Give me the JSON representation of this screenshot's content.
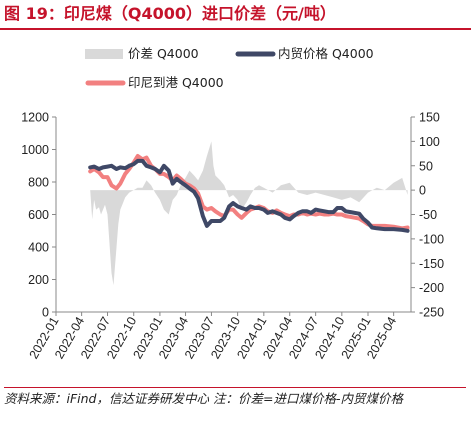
{
  "header": {
    "title": "图 19：印尼煤（Q4000）进口价差（元/吨）"
  },
  "footer": {
    "source": "资料来源：iFind，信达证券研发中心 注：价差=进口煤价格-内贸煤价格"
  },
  "colors": {
    "spread": "#d9d9d9",
    "domestic": "#3f4866",
    "import": "#f28080",
    "title": "#c5132b"
  },
  "chart_data": {
    "type": "line",
    "title": "",
    "legend": [
      "价差 Q4000",
      "内贸价格 Q4000",
      "印尼到港 Q4000"
    ],
    "legend_position": "top",
    "x_ticks": [
      "2022-01",
      "2022-04",
      "2022-07",
      "2022-10",
      "2023-01",
      "2023-04",
      "2023-07",
      "2023-10",
      "2024-01",
      "2024-04",
      "2024-07",
      "2024-10",
      "2025-01",
      "2025-04"
    ],
    "y_left": {
      "min": 0,
      "max": 1200,
      "ticks": [
        0,
        200,
        400,
        600,
        800,
        1000,
        1200
      ]
    },
    "y_right": {
      "min": -250,
      "max": 150,
      "ticks": [
        150,
        100,
        50,
        0,
        -50,
        -100,
        -150,
        -200,
        -250
      ]
    },
    "x_range": [
      "2022-01-01",
      "2025-06-01"
    ],
    "series": [
      {
        "name": "价差 Q4000",
        "type": "area",
        "axis": "right",
        "points": [
          [
            "2022-05-01",
            0
          ],
          [
            "2022-05-08",
            -60
          ],
          [
            "2022-05-15",
            -20
          ],
          [
            "2022-05-22",
            -40
          ],
          [
            "2022-06-01",
            -35
          ],
          [
            "2022-06-08",
            -50
          ],
          [
            "2022-06-15",
            -40
          ],
          [
            "2022-06-22",
            -30
          ],
          [
            "2022-07-01",
            -50
          ],
          [
            "2022-07-08",
            -110
          ],
          [
            "2022-07-15",
            -170
          ],
          [
            "2022-07-22",
            -195
          ],
          [
            "2022-08-01",
            -120
          ],
          [
            "2022-08-08",
            -70
          ],
          [
            "2022-08-15",
            -40
          ],
          [
            "2022-08-22",
            -30
          ],
          [
            "2022-09-01",
            -15
          ],
          [
            "2022-09-15",
            -5
          ],
          [
            "2022-10-01",
            0
          ],
          [
            "2022-10-15",
            5
          ],
          [
            "2022-11-01",
            5
          ],
          [
            "2022-11-15",
            20
          ],
          [
            "2022-12-01",
            10
          ],
          [
            "2022-12-15",
            -5
          ],
          [
            "2023-01-01",
            -20
          ],
          [
            "2023-01-15",
            -40
          ],
          [
            "2023-02-01",
            -50
          ],
          [
            "2023-02-15",
            -20
          ],
          [
            "2023-03-01",
            -10
          ],
          [
            "2023-03-15",
            10
          ],
          [
            "2023-04-01",
            25
          ],
          [
            "2023-04-15",
            40
          ],
          [
            "2023-05-01",
            30
          ],
          [
            "2023-05-15",
            20
          ],
          [
            "2023-06-01",
            40
          ],
          [
            "2023-06-15",
            70
          ],
          [
            "2023-07-01",
            100
          ],
          [
            "2023-07-08",
            50
          ],
          [
            "2023-07-15",
            30
          ],
          [
            "2023-08-01",
            20
          ],
          [
            "2023-08-15",
            10
          ],
          [
            "2023-09-01",
            -15
          ],
          [
            "2023-09-15",
            -10
          ],
          [
            "2023-10-01",
            -20
          ],
          [
            "2023-10-15",
            -40
          ],
          [
            "2023-11-01",
            -25
          ],
          [
            "2023-11-15",
            -10
          ],
          [
            "2023-12-01",
            5
          ],
          [
            "2023-12-15",
            10
          ],
          [
            "2024-01-01",
            5
          ],
          [
            "2024-02-01",
            -5
          ],
          [
            "2024-03-01",
            10
          ],
          [
            "2024-04-01",
            15
          ],
          [
            "2024-05-01",
            -5
          ],
          [
            "2024-06-01",
            -10
          ],
          [
            "2024-07-01",
            -5
          ],
          [
            "2024-08-01",
            -10
          ],
          [
            "2024-09-01",
            -15
          ],
          [
            "2024-10-01",
            -20
          ],
          [
            "2024-11-01",
            -15
          ],
          [
            "2024-12-01",
            -25
          ],
          [
            "2025-01-01",
            -5
          ],
          [
            "2025-02-01",
            5
          ],
          [
            "2025-03-01",
            0
          ],
          [
            "2025-04-01",
            15
          ],
          [
            "2025-05-01",
            25
          ],
          [
            "2025-05-20",
            -10
          ]
        ]
      },
      {
        "name": "内贸价格 Q4000",
        "type": "line",
        "axis": "left",
        "points": [
          [
            "2022-05-01",
            890
          ],
          [
            "2022-05-15",
            895
          ],
          [
            "2022-06-01",
            880
          ],
          [
            "2022-06-15",
            890
          ],
          [
            "2022-07-01",
            895
          ],
          [
            "2022-07-15",
            900
          ],
          [
            "2022-08-01",
            880
          ],
          [
            "2022-08-15",
            890
          ],
          [
            "2022-09-01",
            885
          ],
          [
            "2022-09-15",
            900
          ],
          [
            "2022-10-01",
            910
          ],
          [
            "2022-10-15",
            930
          ],
          [
            "2022-11-01",
            930
          ],
          [
            "2022-11-15",
            900
          ],
          [
            "2022-12-01",
            890
          ],
          [
            "2022-12-15",
            880
          ],
          [
            "2023-01-01",
            860
          ],
          [
            "2023-01-15",
            900
          ],
          [
            "2023-02-01",
            870
          ],
          [
            "2023-02-15",
            790
          ],
          [
            "2023-03-01",
            820
          ],
          [
            "2023-03-15",
            800
          ],
          [
            "2023-04-01",
            780
          ],
          [
            "2023-04-15",
            760
          ],
          [
            "2023-05-01",
            740
          ],
          [
            "2023-05-15",
            700
          ],
          [
            "2023-06-01",
            590
          ],
          [
            "2023-06-15",
            530
          ],
          [
            "2023-07-01",
            560
          ],
          [
            "2023-07-15",
            560
          ],
          [
            "2023-08-01",
            560
          ],
          [
            "2023-08-15",
            580
          ],
          [
            "2023-09-01",
            650
          ],
          [
            "2023-09-15",
            670
          ],
          [
            "2023-10-01",
            650
          ],
          [
            "2023-10-15",
            640
          ],
          [
            "2023-11-01",
            630
          ],
          [
            "2023-11-15",
            650
          ],
          [
            "2023-12-01",
            640
          ],
          [
            "2023-12-15",
            640
          ],
          [
            "2024-01-01",
            630
          ],
          [
            "2024-01-15",
            610
          ],
          [
            "2024-02-01",
            620
          ],
          [
            "2024-02-15",
            610
          ],
          [
            "2024-03-01",
            600
          ],
          [
            "2024-03-15",
            580
          ],
          [
            "2024-04-01",
            570
          ],
          [
            "2024-04-15",
            590
          ],
          [
            "2024-05-01",
            610
          ],
          [
            "2024-05-15",
            620
          ],
          [
            "2024-06-01",
            620
          ],
          [
            "2024-06-15",
            610
          ],
          [
            "2024-07-01",
            630
          ],
          [
            "2024-07-15",
            625
          ],
          [
            "2024-08-01",
            620
          ],
          [
            "2024-08-15",
            615
          ],
          [
            "2024-09-01",
            615
          ],
          [
            "2024-09-15",
            640
          ],
          [
            "2024-10-01",
            640
          ],
          [
            "2024-10-15",
            620
          ],
          [
            "2024-11-01",
            615
          ],
          [
            "2024-12-01",
            605
          ],
          [
            "2024-12-15",
            575
          ],
          [
            "2025-01-01",
            550
          ],
          [
            "2025-01-15",
            520
          ],
          [
            "2025-02-01",
            515
          ],
          [
            "2025-03-01",
            510
          ],
          [
            "2025-04-01",
            510
          ],
          [
            "2025-05-01",
            505
          ],
          [
            "2025-05-20",
            500
          ]
        ]
      },
      {
        "name": "印尼到港 Q4000",
        "type": "line",
        "axis": "left",
        "points": [
          [
            "2022-05-01",
            865
          ],
          [
            "2022-05-15",
            880
          ],
          [
            "2022-06-01",
            860
          ],
          [
            "2022-06-15",
            830
          ],
          [
            "2022-07-01",
            830
          ],
          [
            "2022-07-15",
            780
          ],
          [
            "2022-08-01",
            760
          ],
          [
            "2022-08-15",
            790
          ],
          [
            "2022-09-01",
            850
          ],
          [
            "2022-09-15",
            880
          ],
          [
            "2022-10-01",
            920
          ],
          [
            "2022-10-15",
            960
          ],
          [
            "2022-11-01",
            940
          ],
          [
            "2022-11-15",
            950
          ],
          [
            "2022-12-01",
            900
          ],
          [
            "2022-12-15",
            880
          ],
          [
            "2023-01-01",
            850
          ],
          [
            "2023-01-15",
            850
          ],
          [
            "2023-02-01",
            830
          ],
          [
            "2023-02-15",
            810
          ],
          [
            "2023-03-01",
            840
          ],
          [
            "2023-03-15",
            820
          ],
          [
            "2023-04-01",
            790
          ],
          [
            "2023-04-15",
            780
          ],
          [
            "2023-05-01",
            760
          ],
          [
            "2023-05-15",
            730
          ],
          [
            "2023-06-01",
            650
          ],
          [
            "2023-06-15",
            630
          ],
          [
            "2023-07-01",
            640
          ],
          [
            "2023-07-15",
            620
          ],
          [
            "2023-08-01",
            600
          ],
          [
            "2023-08-15",
            590
          ],
          [
            "2023-09-01",
            630
          ],
          [
            "2023-09-15",
            630
          ],
          [
            "2023-10-01",
            600
          ],
          [
            "2023-10-15",
            580
          ],
          [
            "2023-11-01",
            610
          ],
          [
            "2023-11-15",
            630
          ],
          [
            "2023-12-01",
            640
          ],
          [
            "2023-12-15",
            650
          ],
          [
            "2024-01-01",
            640
          ],
          [
            "2024-01-15",
            620
          ],
          [
            "2024-02-01",
            610
          ],
          [
            "2024-02-15",
            625
          ],
          [
            "2024-03-01",
            610
          ],
          [
            "2024-03-15",
            600
          ],
          [
            "2024-04-01",
            590
          ],
          [
            "2024-04-15",
            600
          ],
          [
            "2024-05-01",
            600
          ],
          [
            "2024-05-15",
            610
          ],
          [
            "2024-06-01",
            600
          ],
          [
            "2024-06-15",
            605
          ],
          [
            "2024-07-01",
            600
          ],
          [
            "2024-07-15",
            605
          ],
          [
            "2024-08-01",
            600
          ],
          [
            "2024-08-15",
            600
          ],
          [
            "2024-09-01",
            605
          ],
          [
            "2024-09-15",
            600
          ],
          [
            "2024-10-01",
            600
          ],
          [
            "2024-10-15",
            590
          ],
          [
            "2024-11-01",
            585
          ],
          [
            "2024-12-01",
            575
          ],
          [
            "2024-12-15",
            560
          ],
          [
            "2025-01-01",
            540
          ],
          [
            "2025-01-15",
            530
          ],
          [
            "2025-02-01",
            530
          ],
          [
            "2025-03-01",
            530
          ],
          [
            "2025-04-01",
            525
          ],
          [
            "2025-05-01",
            515
          ],
          [
            "2025-05-20",
            520
          ]
        ]
      }
    ]
  }
}
